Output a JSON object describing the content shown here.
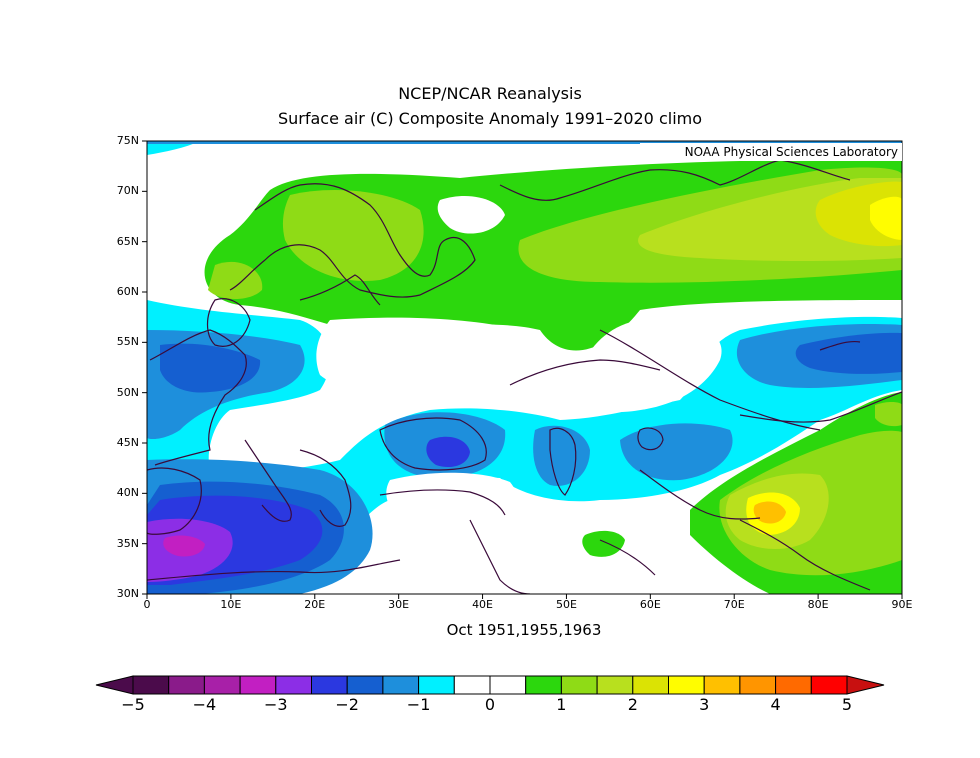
{
  "title_line1": "NCEP/NCAR Reanalysis",
  "title_line2": "Surface air (C) Composite Anomaly 1991–2020 climo",
  "credit": "NOAA Physical Sciences Laboratory",
  "period": "Oct 1951,1955,1963",
  "map": {
    "lon_range": [
      0,
      90
    ],
    "lat_range": [
      30,
      75
    ],
    "y_ticks": [
      "75N",
      "70N",
      "65N",
      "60N",
      "55N",
      "50N",
      "45N",
      "40N",
      "35N",
      "30N"
    ],
    "x_ticks": [
      "0",
      "10E",
      "20E",
      "30E",
      "40E",
      "50E",
      "60E",
      "70E",
      "80E",
      "90E"
    ]
  },
  "colorbar": {
    "labels": [
      "−5",
      "−4",
      "−3",
      "−2",
      "−1",
      "0",
      "1",
      "2",
      "3",
      "4",
      "5"
    ],
    "colors": [
      "#4b0b4b",
      "#8a1b8a",
      "#a820a8",
      "#c21fc2",
      "#8c2ee6",
      "#2b38e0",
      "#155fd0",
      "#1e8fdc",
      "#00f0ff",
      "#ffffff",
      "#ffffff",
      "#2cd70d",
      "#8fdb16",
      "#b8e01e",
      "#dbe304",
      "#fffd00",
      "#ffc000",
      "#ff9500",
      "#ff6a00",
      "#ff0000"
    ],
    "low_color": "#4b0b4b",
    "high_color": "#c81010"
  }
}
